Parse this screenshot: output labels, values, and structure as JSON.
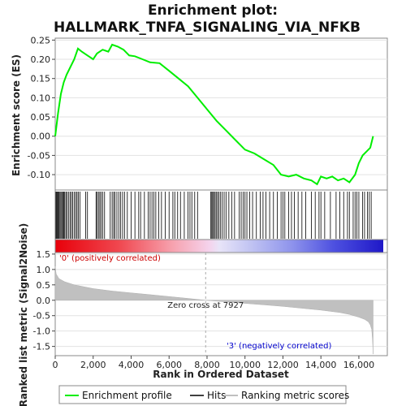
{
  "chart_data": {
    "type": "line",
    "title_line1": "Enrichment plot:",
    "title_line2": "HALLMARK_TNFA_SIGNALING_VIA_NFKB",
    "es_panel": {
      "ylabel": "Enrichment score (ES)",
      "ylim": [
        -0.14,
        0.255
      ],
      "yticks": [
        0.25,
        0.2,
        0.15,
        0.1,
        0.05,
        0.0,
        -0.05,
        -0.1
      ],
      "ytick_labels": [
        "0.25",
        "0.20",
        "0.15",
        "0.10",
        "0.05",
        "0.00",
        "-0.05",
        "-0.10"
      ],
      "series_name": "Enrichment profile",
      "color": "#00ee00",
      "x": [
        0,
        150,
        300,
        450,
        600,
        800,
        1000,
        1200,
        1400,
        1700,
        2000,
        2200,
        2500,
        2800,
        3000,
        3300,
        3600,
        3900,
        4200,
        4600,
        5000,
        5500,
        6000,
        6500,
        7000,
        7500,
        8000,
        8500,
        9000,
        9500,
        10000,
        10500,
        11000,
        11500,
        11900,
        12300,
        12700,
        13100,
        13500,
        13800,
        14000,
        14300,
        14600,
        14900,
        15200,
        15500,
        15800,
        16000,
        16200,
        16400,
        16600,
        16750
      ],
      "y": [
        0.0,
        0.06,
        0.11,
        0.14,
        0.16,
        0.18,
        0.2,
        0.228,
        0.22,
        0.21,
        0.2,
        0.215,
        0.225,
        0.22,
        0.238,
        0.233,
        0.225,
        0.21,
        0.208,
        0.2,
        0.192,
        0.19,
        0.17,
        0.15,
        0.13,
        0.1,
        0.07,
        0.04,
        0.015,
        -0.01,
        -0.035,
        -0.045,
        -0.06,
        -0.075,
        -0.1,
        -0.105,
        -0.1,
        -0.11,
        -0.115,
        -0.125,
        -0.105,
        -0.11,
        -0.105,
        -0.115,
        -0.11,
        -0.12,
        -0.1,
        -0.07,
        -0.05,
        -0.04,
        -0.03,
        0.0
      ]
    },
    "hits_panel": {
      "series_name": "Hits",
      "positions": [
        40,
        80,
        120,
        160,
        200,
        250,
        300,
        350,
        400,
        450,
        500,
        560,
        620,
        700,
        780,
        850,
        920,
        1000,
        1080,
        1150,
        1220,
        1300,
        1600,
        1700,
        2150,
        2200,
        2280,
        2350,
        2420,
        2500,
        2600,
        2900,
        3000,
        3080,
        3150,
        3250,
        3350,
        3450,
        3550,
        3650,
        3800,
        4000,
        4200,
        4400,
        4500,
        4700,
        4900,
        5000,
        5100,
        5200,
        5300,
        5450,
        5600,
        5800,
        6000,
        6200,
        6300,
        6450,
        6600,
        6800,
        7000,
        7100,
        7200,
        7350,
        7500,
        8200,
        8250,
        8300,
        8350,
        8420,
        8480,
        8550,
        8620,
        8700,
        8800,
        8900,
        9000,
        9150,
        9300,
        9450,
        9700,
        9800,
        9900,
        10000,
        10100,
        10250,
        10400,
        10600,
        10800,
        10950,
        11100,
        11300,
        11500,
        11700,
        11900,
        12000,
        12100,
        12300,
        12450,
        12600,
        12800,
        13000,
        13200,
        13500,
        13700,
        13900,
        14000,
        14200,
        14500,
        14800,
        15000,
        15200,
        15400,
        15500,
        15700,
        15800,
        15900,
        16000,
        16200,
        16300,
        16450,
        16550,
        16650
      ]
    },
    "ranking_panel": {
      "ylabel": "Ranked list metric (Signal2Noise)",
      "xlabel": "Rank in Ordered Dataset",
      "ylim": [
        -1.8,
        1.55
      ],
      "yticks": [
        1.5,
        1.0,
        0.5,
        0.0,
        -0.5,
        -1.0,
        -1.5
      ],
      "ytick_labels": [
        "1.5",
        "1.0",
        "0.5",
        "0.0",
        "-0.5",
        "-1.0",
        "-1.5"
      ],
      "xlim": [
        0,
        17500
      ],
      "xticks": [
        0,
        2000,
        4000,
        6000,
        8000,
        10000,
        12000,
        14000,
        16000
      ],
      "xtick_labels": [
        "0",
        "2,000",
        "4,000",
        "6,000",
        "8,000",
        "10,000",
        "12,000",
        "14,000",
        "16,000"
      ],
      "series_name": "Ranking metric scores",
      "color": "#c0c0c0",
      "x": [
        0,
        50,
        200,
        500,
        1000,
        2000,
        3000,
        4000,
        5000,
        6000,
        7000,
        7927,
        9000,
        10000,
        11000,
        12000,
        13000,
        14000,
        15000,
        15500,
        16000,
        16300,
        16500,
        16600,
        16680,
        16720,
        16750
      ],
      "y": [
        1.1,
        0.85,
        0.7,
        0.6,
        0.5,
        0.38,
        0.3,
        0.24,
        0.18,
        0.12,
        0.06,
        0.0,
        -0.05,
        -0.1,
        -0.15,
        -0.2,
        -0.26,
        -0.32,
        -0.4,
        -0.46,
        -0.55,
        -0.62,
        -0.7,
        -0.8,
        -0.95,
        -1.3,
        -1.75
      ],
      "zero_cross_label": "Zero cross at 7927",
      "zero_cross_x": 7927,
      "positive_label": "'0' (positively correlated)",
      "negative_label": "'3' (negatively correlated)",
      "positive_color": "#cc0000",
      "negative_color": "#0000cc"
    },
    "n_genes": 16750,
    "legend": {
      "placement": "bottom",
      "items": [
        "Enrichment profile",
        "Hits",
        "Ranking metric scores"
      ]
    }
  }
}
